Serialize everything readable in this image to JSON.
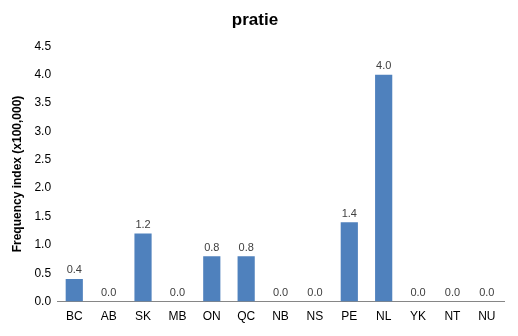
{
  "chart_data": {
    "type": "bar",
    "title": "pratie",
    "y_label": "Frequency index (x100,000)",
    "categories": [
      "BC",
      "AB",
      "SK",
      "MB",
      "ON",
      "QC",
      "NB",
      "NS",
      "PE",
      "NL",
      "YK",
      "NT",
      "NU"
    ],
    "values": [
      0.4,
      0,
      1.2,
      0,
      0.8,
      0.8,
      0,
      0,
      1.4,
      4.0,
      0,
      0,
      0
    ],
    "value_labels": [
      "0.4",
      "0.0",
      "1.2",
      "0.0",
      "0.8",
      "0.8",
      "0.0",
      "0.0",
      "1.4",
      "4.0",
      "0.0",
      "0.0",
      "0.0"
    ],
    "color": "#4f81bd",
    "ylim": [
      0,
      4.5
    ],
    "yticks": [
      {
        "value": 0,
        "label": "0.0"
      },
      0.5,
      {
        "value": 1,
        "label": "1.0"
      },
      1.5,
      {
        "value": 2,
        "label": "2.0"
      },
      2.5,
      {
        "value": 3,
        "label": "3.0"
      },
      3.5,
      {
        "value": 4,
        "label": "4.0"
      },
      4.5
    ],
    "grid": false,
    "data_labels": true
  }
}
